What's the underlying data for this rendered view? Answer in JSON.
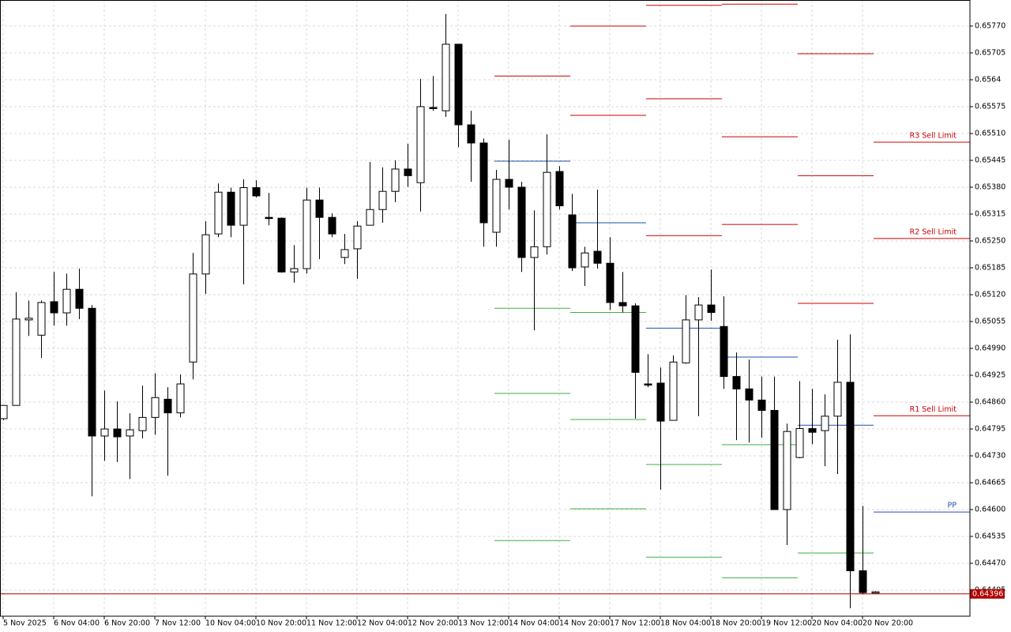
{
  "chart_data": {
    "type": "candlestick",
    "categories": [
      "5 Nov 2025",
      null,
      null,
      null,
      "6 Nov 04:00",
      null,
      null,
      null,
      "6 Nov 20:00",
      null,
      null,
      null,
      "7 Nov 12:00",
      null,
      null,
      null,
      "10 Nov 04:00",
      null,
      null,
      null,
      "10 Nov 20:00",
      null,
      null,
      null,
      "11 Nov 12:00",
      null,
      null,
      null,
      "12 Nov 04:00",
      null,
      null,
      null,
      "12 Nov 20:00",
      null,
      null,
      null,
      "13 Nov 12:00",
      null,
      null,
      null,
      "14 Nov 04:00",
      null,
      null,
      null,
      "14 Nov 20:00",
      null,
      null,
      null,
      "17 Nov 12:00",
      null,
      null,
      null,
      "18 Nov 04:00",
      null,
      null,
      null,
      "18 Nov 20:00",
      null,
      null,
      null,
      "19 Nov 12:00",
      null,
      null,
      null,
      "20 Nov 04:00",
      null,
      null,
      null,
      "20 Nov 20:00",
      null
    ],
    "open": [
      0.6482,
      0.64852,
      0.65059,
      0.65022,
      0.65103,
      0.65076,
      0.65133,
      0.65087,
      0.64778,
      0.64795,
      0.64778,
      0.64791,
      0.64823,
      0.64867,
      0.64834,
      0.64957,
      0.6517,
      0.65267,
      0.65368,
      0.65288,
      0.65379,
      0.65307,
      0.65305,
      0.65175,
      0.65183,
      0.65349,
      0.65307,
      0.6521,
      0.65231,
      0.65288,
      0.65326,
      0.6537,
      0.65424,
      0.65391,
      0.65573,
      0.65565,
      0.65726,
      0.65531,
      0.65487,
      0.65271,
      0.65399,
      0.6538,
      0.6521,
      0.65236,
      0.65418,
      0.65313,
      0.65187,
      0.65225,
      0.65196,
      0.65101,
      0.65093,
      0.64904,
      0.64906,
      0.64816,
      0.64955,
      0.65059,
      0.65095,
      0.65043,
      0.64922,
      0.64892,
      0.64865,
      0.6484,
      0.646,
      0.64726,
      0.64796,
      0.64791,
      0.64826,
      0.64908,
      0.64452,
      0.64399
    ],
    "high": [
      0.64852,
      0.65126,
      0.65106,
      0.65106,
      0.65175,
      0.65171,
      0.65183,
      0.65095,
      0.64888,
      0.64862,
      0.64833,
      0.649,
      0.6493,
      0.64896,
      0.64927,
      0.65221,
      0.65298,
      0.65389,
      0.65379,
      0.65399,
      0.65397,
      0.65366,
      0.65307,
      0.6524,
      0.65379,
      0.65379,
      0.65317,
      0.65267,
      0.65298,
      0.65441,
      0.65428,
      0.65445,
      0.65485,
      0.65642,
      0.65649,
      0.65799,
      0.65726,
      0.65565,
      0.65498,
      0.65422,
      0.65495,
      0.65393,
      0.65324,
      0.65508,
      0.65431,
      0.65364,
      0.65236,
      0.65374,
      0.65259,
      0.65175,
      0.65099,
      0.64976,
      0.64944,
      0.64973,
      0.65119,
      0.65114,
      0.65181,
      0.65116,
      0.6498,
      0.64963,
      0.64922,
      0.64922,
      0.64808,
      0.64911,
      0.64892,
      0.64879,
      0.65011,
      0.65024,
      0.64609,
      0.64403
    ],
    "low": [
      0.64816,
      0.64852,
      0.6502,
      0.64967,
      0.65045,
      0.65045,
      0.65061,
      0.64632,
      0.64718,
      0.64715,
      0.64674,
      0.64772,
      0.64781,
      0.64682,
      0.64823,
      0.64915,
      0.65122,
      0.65259,
      0.65259,
      0.65145,
      0.65355,
      0.65288,
      0.65173,
      0.65149,
      0.65171,
      0.65206,
      0.65259,
      0.65194,
      0.65158,
      0.65288,
      0.65294,
      0.65344,
      0.65381,
      0.65321,
      0.65565,
      0.6555,
      0.65477,
      0.65393,
      0.65236,
      0.65236,
      0.65326,
      0.65175,
      0.65034,
      0.65217,
      0.65326,
      0.65177,
      0.65141,
      0.65183,
      0.65083,
      0.65077,
      0.6482,
      0.64896,
      0.64648,
      0.64816,
      0.64953,
      0.64826,
      0.65057,
      0.64892,
      0.64768,
      0.64762,
      0.64774,
      0.646,
      0.64514,
      0.64724,
      0.64758,
      0.64705,
      0.64686,
      0.64361,
      0.64395,
      0.64397
    ],
    "close": [
      0.64852,
      0.65061,
      0.65063,
      0.65101,
      0.65076,
      0.65133,
      0.65087,
      0.64778,
      0.64795,
      0.64776,
      0.64793,
      0.64823,
      0.64871,
      0.64834,
      0.64904,
      0.6517,
      0.65265,
      0.65368,
      0.65288,
      0.65379,
      0.65359,
      0.65305,
      0.65175,
      0.65183,
      0.65349,
      0.65307,
      0.65267,
      0.65229,
      0.65286,
      0.65326,
      0.6537,
      0.65424,
      0.65408,
      0.65575,
      0.65571,
      0.65726,
      0.65531,
      0.65487,
      0.65294,
      0.65399,
      0.6538,
      0.6521,
      0.65236,
      0.65416,
      0.65335,
      0.65185,
      0.65221,
      0.65196,
      0.65101,
      0.65093,
      0.64932,
      0.64902,
      0.64814,
      0.64957,
      0.65059,
      0.65095,
      0.65077,
      0.64922,
      0.64892,
      0.64865,
      0.6484,
      0.646,
      0.64789,
      0.64796,
      0.64787,
      0.64826,
      0.64908,
      0.64452,
      0.64399,
      0.64401
    ],
    "up_color": "#ffffff",
    "down_color": "#000000",
    "ylim": [
      0.64342,
      0.65833
    ],
    "yticks": [
      {
        "value": 0.6577,
        "label": "0.65770"
      },
      0.65705,
      0.6564,
      0.65575,
      {
        "value": 0.6551,
        "label": "0.65510"
      },
      0.65445,
      {
        "value": 0.6538,
        "label": "0.65380"
      },
      0.65315,
      {
        "value": 0.6525,
        "label": "0.65250"
      },
      0.65185,
      {
        "value": 0.6512,
        "label": "0.65120"
      },
      0.65055,
      {
        "value": 0.6499,
        "label": "0.64990"
      },
      0.64925,
      {
        "value": 0.6486,
        "label": "0.64860"
      },
      0.64795,
      {
        "value": 0.6473,
        "label": "0.64730"
      },
      0.64665,
      {
        "value": 0.646,
        "label": "0.64600"
      },
      0.64535,
      {
        "value": 0.6447,
        "label": "0.64470"
      },
      0.64405
    ],
    "grid": true,
    "current_price": 0.64396,
    "current_price_color": "#b00000",
    "pivot_days": [
      {
        "lines": [
          {
            "value": 0.65649,
            "color": "#cc0000"
          },
          {
            "value": 0.65443,
            "color": "#1f4fb0"
          },
          {
            "value": 0.65087,
            "color": "#3cb043"
          },
          {
            "value": 0.64881,
            "color": "#3cb043"
          },
          {
            "value": 0.64525,
            "color": "#3cb043"
          }
        ]
      },
      {
        "lines": [
          {
            "value": 0.6577,
            "color": "#cc0000"
          },
          {
            "value": 0.65554,
            "color": "#cc0000"
          },
          {
            "value": 0.65294,
            "color": "#1f4fb0"
          },
          {
            "value": 0.65077,
            "color": "#3cb043"
          },
          {
            "value": 0.64818,
            "color": "#3cb043"
          },
          {
            "value": 0.64602,
            "color": "#3cb043"
          }
        ]
      },
      {
        "lines": [
          {
            "value": 0.6582,
            "color": "#cc0000"
          },
          {
            "value": 0.65594,
            "color": "#cc0000"
          },
          {
            "value": 0.65263,
            "color": "#cc0000"
          },
          {
            "value": 0.65039,
            "color": "#1f4fb0"
          },
          {
            "value": 0.64709,
            "color": "#3cb043"
          },
          {
            "value": 0.64485,
            "color": "#3cb043"
          }
        ]
      },
      {
        "lines": [
          {
            "value": 0.65823,
            "color": "#cc0000"
          },
          {
            "value": 0.65502,
            "color": "#cc0000"
          },
          {
            "value": 0.6529,
            "color": "#cc0000"
          },
          {
            "value": 0.64969,
            "color": "#1f4fb0"
          },
          {
            "value": 0.64757,
            "color": "#3cb043"
          },
          {
            "value": 0.64435,
            "color": "#3cb043"
          }
        ]
      },
      {
        "lines": [
          {
            "value": 0.65703,
            "color": "#cc0000"
          },
          {
            "value": 0.65408,
            "color": "#cc0000"
          },
          {
            "value": 0.65099,
            "color": "#cc0000"
          },
          {
            "value": 0.64804,
            "color": "#1f4fb0"
          },
          {
            "value": 0.64495,
            "color": "#3cb043"
          }
        ]
      },
      {
        "lines": [
          {
            "value": 0.65489,
            "color": "#cc0000",
            "label": "R3 Sell Limit"
          },
          {
            "value": 0.65256,
            "color": "#cc0000",
            "label": "R2 Sell Limit"
          },
          {
            "value": 0.64827,
            "color": "#cc0000",
            "label": "R1 Sell Limit"
          },
          {
            "value": 0.64594,
            "color": "#1f4fb0",
            "label": "PP"
          }
        ]
      }
    ]
  }
}
